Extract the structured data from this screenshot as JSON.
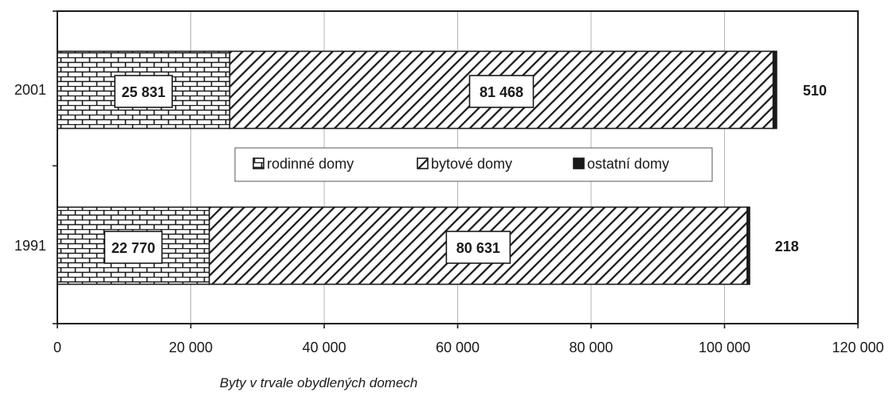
{
  "chart_data": {
    "type": "bar",
    "orientation": "horizontal",
    "stacked": true,
    "categories": [
      "2001",
      "1991"
    ],
    "series": [
      {
        "name": "rodinné domy",
        "values": [
          25831,
          22770
        ],
        "labels": [
          "25 831",
          "22 770"
        ],
        "pattern": "brick"
      },
      {
        "name": "bytové domy",
        "values": [
          81468,
          80631
        ],
        "labels": [
          "81 468",
          "80 631"
        ],
        "pattern": "diagonal-hatch"
      },
      {
        "name": "ostatní domy",
        "values": [
          510,
          218
        ],
        "labels": [
          "510",
          "218"
        ],
        "pattern": "solid"
      }
    ],
    "xlabel": "Byty v trvale obydlených domech",
    "xlim": [
      0,
      120000
    ],
    "xticks": [
      0,
      20000,
      40000,
      60000,
      80000,
      100000,
      120000
    ],
    "xtick_labels": [
      "0",
      "20 000",
      "40 000",
      "60 000",
      "80 000",
      "100 000",
      "120 000"
    ],
    "grid": true,
    "legend_position": "center"
  }
}
